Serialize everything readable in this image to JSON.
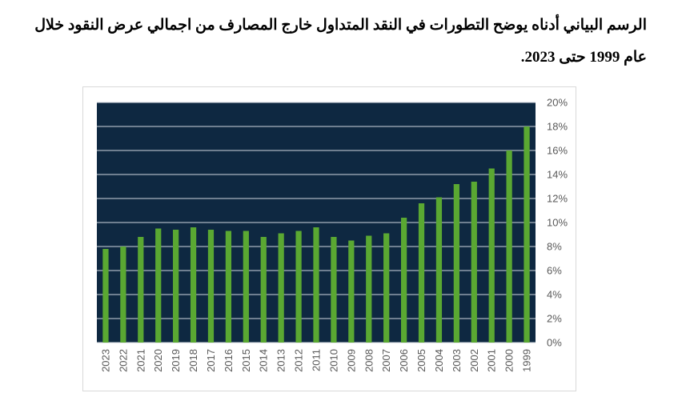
{
  "heading": {
    "line1": "الرسم البياني أدناه يوضح التطورات في النقد المتداول خارج المصارف من اجمالي عرض النقود خلال",
    "line2": "عام 1999 حتى 2023."
  },
  "colors": {
    "plot_bg": "#0e2841",
    "bar": "#5aa832",
    "grid": "#d0d6de",
    "tick_text": "#595959"
  },
  "chart_data": {
    "type": "bar",
    "title": "",
    "xlabel": "",
    "ylabel": "",
    "categories": [
      "2023",
      "2022",
      "2021",
      "2020",
      "2019",
      "2018",
      "2017",
      "2016",
      "2015",
      "2014",
      "2013",
      "2012",
      "2011",
      "2010",
      "2009",
      "2008",
      "2007",
      "2006",
      "2005",
      "2004",
      "2003",
      "2002",
      "2001",
      "2000",
      "1999"
    ],
    "values": [
      7.8,
      8.0,
      8.8,
      9.5,
      9.4,
      9.6,
      9.4,
      9.3,
      9.3,
      8.8,
      9.1,
      9.3,
      9.6,
      8.8,
      8.5,
      8.9,
      9.1,
      10.4,
      11.6,
      12.1,
      13.2,
      13.4,
      14.5,
      16.0,
      18.0
    ],
    "ylim": [
      0,
      20
    ],
    "yticks": [
      "0%",
      "2%",
      "4%",
      "6%",
      "8%",
      "10%",
      "12%",
      "14%",
      "16%",
      "18%",
      "20%"
    ],
    "y_axis_position": "right",
    "grid": true,
    "legend": "none"
  }
}
